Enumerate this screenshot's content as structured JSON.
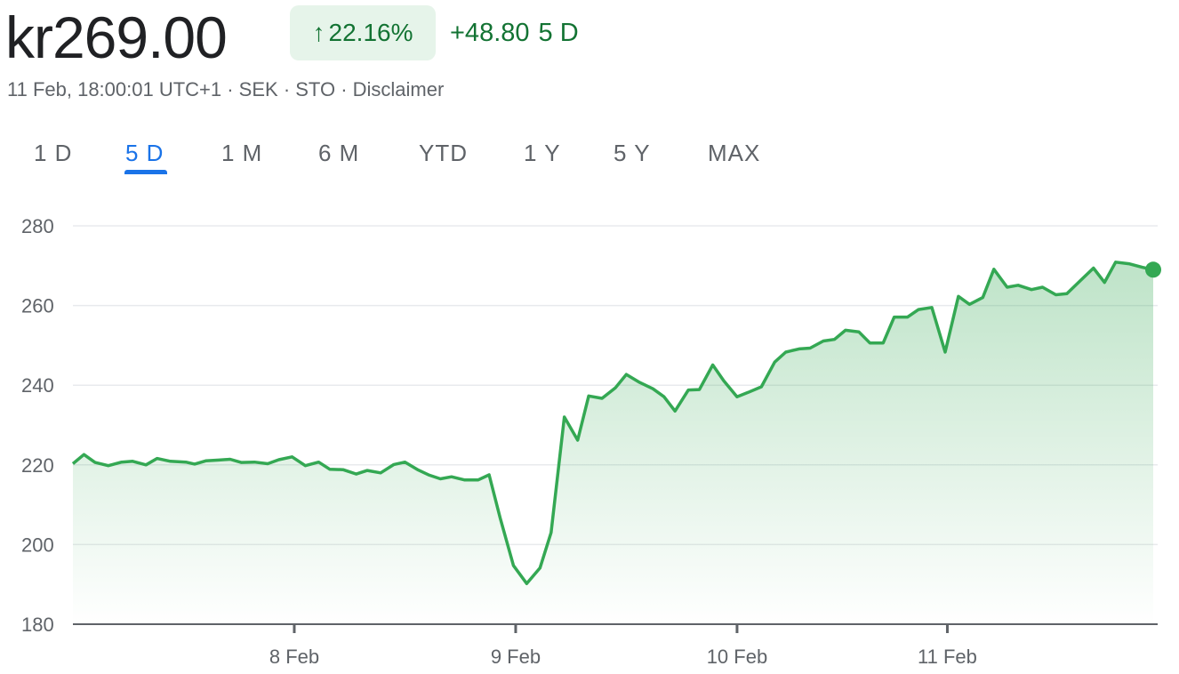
{
  "header": {
    "price": "kr269.00",
    "change_percent": "22.16%",
    "change_amount": "+48.80",
    "change_period": "5 D",
    "meta": "11 Feb, 18:00:01 UTC+1 · SEK · STO · Disclaimer"
  },
  "tabs": [
    "1 D",
    "5 D",
    "1 M",
    "6 M",
    "YTD",
    "1 Y",
    "5 Y",
    "MAX"
  ],
  "active_tab": "5 D",
  "colors": {
    "line": "#34a853",
    "positive_text": "#137333",
    "badge_bg": "#e6f4ea",
    "active_tab": "#1a73e8"
  },
  "chart_data": {
    "type": "area",
    "ylim": [
      180,
      280
    ],
    "yticks": [
      180,
      200,
      220,
      240,
      260,
      280
    ],
    "xticks": [
      {
        "label": "8 Feb",
        "x": 1
      },
      {
        "label": "9 Feb",
        "x": 2
      },
      {
        "label": "10 Feb",
        "x": 3
      },
      {
        "label": "11 Feb",
        "x": 3.95
      }
    ],
    "xlim": [
      0,
      4.9
    ],
    "grid": true,
    "series": [
      {
        "values": [
          [
            0.0,
            220.3
          ],
          [
            0.05,
            222.6
          ],
          [
            0.1,
            220.6
          ],
          [
            0.16,
            219.8
          ],
          [
            0.22,
            220.7
          ],
          [
            0.27,
            220.9
          ],
          [
            0.33,
            220.0
          ],
          [
            0.38,
            221.6
          ],
          [
            0.44,
            220.9
          ],
          [
            0.51,
            220.7
          ],
          [
            0.55,
            220.2
          ],
          [
            0.6,
            221.0
          ],
          [
            0.66,
            221.2
          ],
          [
            0.71,
            221.4
          ],
          [
            0.76,
            220.6
          ],
          [
            0.82,
            220.7
          ],
          [
            0.88,
            220.3
          ],
          [
            0.93,
            221.3
          ],
          [
            0.99,
            222.0
          ],
          [
            1.05,
            219.8
          ],
          [
            1.11,
            220.7
          ],
          [
            1.16,
            218.9
          ],
          [
            1.22,
            218.8
          ],
          [
            1.28,
            217.7
          ],
          [
            1.33,
            218.6
          ],
          [
            1.39,
            218.0
          ],
          [
            1.45,
            220.1
          ],
          [
            1.5,
            220.7
          ],
          [
            1.56,
            218.7
          ],
          [
            1.61,
            217.4
          ],
          [
            1.66,
            216.5
          ],
          [
            1.71,
            217.0
          ],
          [
            1.77,
            216.2
          ],
          [
            1.83,
            216.2
          ],
          [
            1.88,
            217.5
          ],
          [
            1.93,
            206.7
          ],
          [
            1.99,
            194.7
          ],
          [
            2.05,
            190.2
          ],
          [
            2.11,
            194.1
          ],
          [
            2.16,
            203.0
          ],
          [
            2.22,
            232.0
          ],
          [
            2.28,
            226.2
          ],
          [
            2.33,
            237.3
          ],
          [
            2.39,
            236.7
          ],
          [
            2.45,
            239.3
          ],
          [
            2.5,
            242.7
          ],
          [
            2.56,
            240.7
          ],
          [
            2.62,
            239.1
          ],
          [
            2.67,
            237.1
          ],
          [
            2.72,
            233.5
          ],
          [
            2.78,
            238.8
          ],
          [
            2.83,
            238.9
          ],
          [
            2.89,
            245.1
          ],
          [
            2.94,
            241.1
          ],
          [
            3.0,
            237.1
          ],
          [
            3.05,
            238.2
          ],
          [
            3.11,
            239.6
          ],
          [
            3.17,
            245.8
          ],
          [
            3.22,
            248.3
          ],
          [
            3.28,
            249.1
          ],
          [
            3.33,
            249.3
          ],
          [
            3.39,
            251.1
          ],
          [
            3.44,
            251.5
          ],
          [
            3.49,
            253.8
          ],
          [
            3.55,
            253.4
          ],
          [
            3.6,
            250.6
          ],
          [
            3.66,
            250.6
          ],
          [
            3.71,
            257.1
          ],
          [
            3.77,
            257.1
          ],
          [
            3.82,
            259.0
          ],
          [
            3.88,
            259.5
          ],
          [
            3.94,
            248.3
          ],
          [
            4.0,
            262.3
          ],
          [
            4.05,
            260.3
          ],
          [
            4.11,
            262.0
          ],
          [
            4.16,
            269.1
          ],
          [
            4.22,
            264.6
          ],
          [
            4.27,
            265.1
          ],
          [
            4.33,
            264.0
          ],
          [
            4.38,
            264.6
          ],
          [
            4.44,
            262.7
          ],
          [
            4.49,
            263.0
          ],
          [
            4.55,
            266.2
          ],
          [
            4.61,
            269.4
          ],
          [
            4.66,
            265.8
          ],
          [
            4.71,
            270.9
          ],
          [
            4.77,
            270.5
          ],
          [
            4.83,
            269.6
          ],
          [
            4.88,
            269.0
          ]
        ]
      }
    ]
  }
}
